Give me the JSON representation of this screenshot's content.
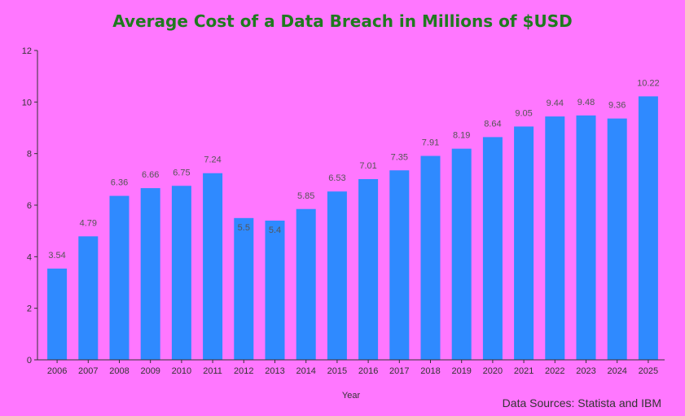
{
  "chart_data": {
    "type": "bar",
    "title": "Average Cost of a Data Breach in Millions of $USD",
    "xlabel": "Year",
    "ylabel": "",
    "categories": [
      "2006",
      "2007",
      "2008",
      "2009",
      "2010",
      "2011",
      "2012",
      "2013",
      "2014",
      "2015",
      "2016",
      "2017",
      "2018",
      "2019",
      "2020",
      "2021",
      "2022",
      "2023",
      "2024",
      "2025"
    ],
    "values": [
      3.54,
      4.79,
      6.36,
      6.66,
      6.75,
      7.24,
      5.5,
      5.4,
      5.85,
      6.53,
      7.01,
      7.35,
      7.91,
      8.19,
      8.64,
      9.05,
      9.44,
      9.48,
      9.36,
      10.22
    ],
    "value_labels": [
      "3.54",
      "4.79",
      "6.36",
      "6.66",
      "6.75",
      "7.24",
      "5.5",
      "5.4",
      "5.85",
      "6.53",
      "7.01",
      "7.35",
      "7.91",
      "8.19",
      "8.64",
      "9.05",
      "9.44",
      "9.48",
      "9.36",
      "10.22"
    ],
    "ylim": [
      0,
      12
    ],
    "yticks": [
      "0",
      "2",
      "4",
      "6",
      "8",
      "10",
      "12"
    ],
    "grid": false,
    "legend": "none",
    "bar_color": "#2f8aff",
    "background_color": "#ff77ff",
    "title_color": "#1f7a1f"
  },
  "footer": {
    "source": "Data Sources: Statista and IBM"
  }
}
